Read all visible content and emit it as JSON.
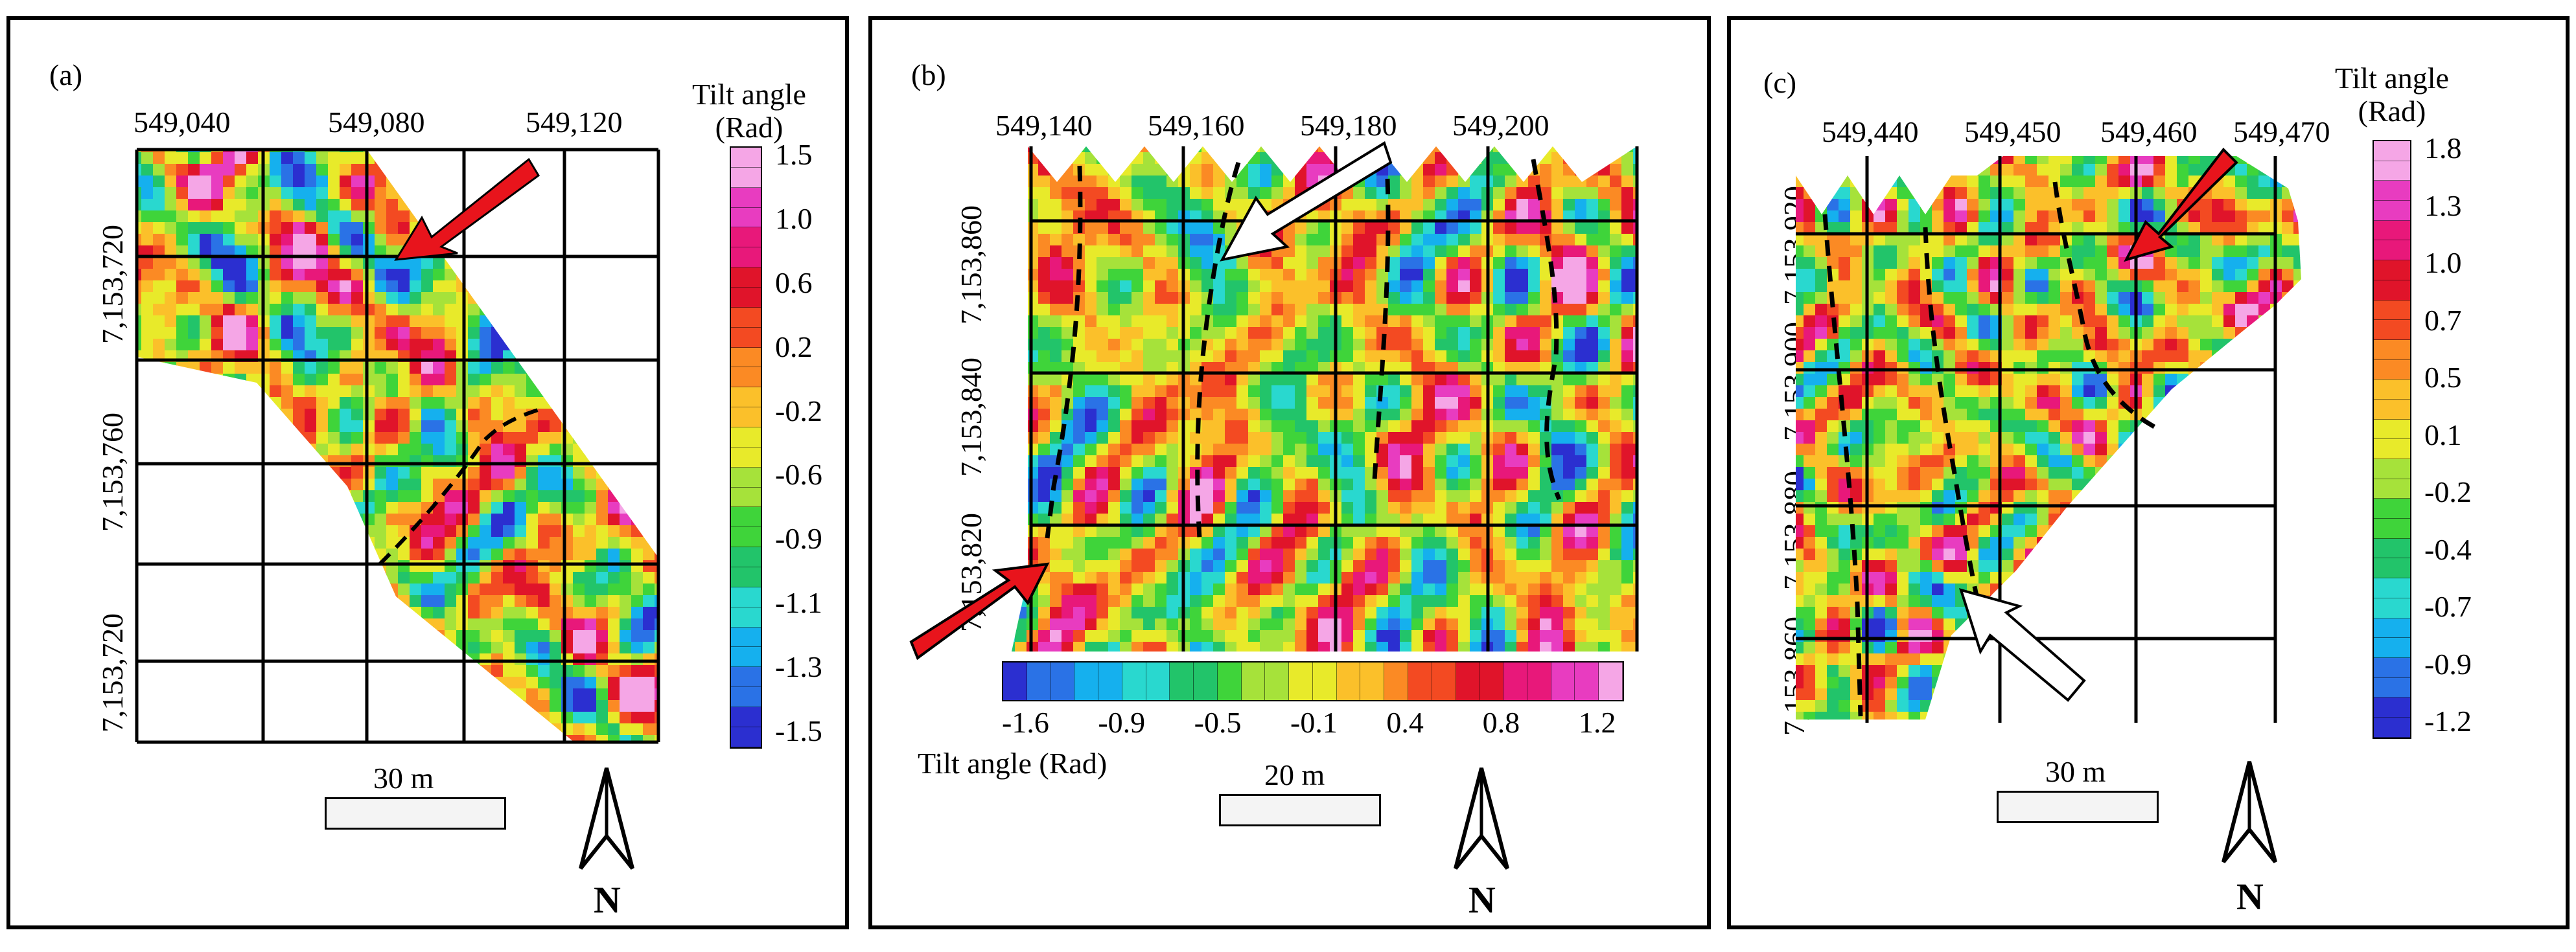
{
  "colorscale": [
    "#2b2fd0",
    "#2a72e6",
    "#15b0ee",
    "#29d8cf",
    "#22c46a",
    "#3fd43a",
    "#a6e23a",
    "#e8ea2a",
    "#fbc02a",
    "#fb8a24",
    "#f34a22",
    "#e0142a",
    "#e8187a",
    "#e83cc0",
    "#f5a6e6"
  ],
  "panels": [
    {
      "id": "a",
      "label": "(a)",
      "x_ticks": [
        "549,040",
        "549,080",
        "549,120"
      ],
      "y_ticks": [
        "7,153,720",
        "7,153,760",
        "7,153,720"
      ],
      "colorbar_title": "Tilt angle\n(Rad)",
      "colorbar_labels": [
        "1.5",
        "1.0",
        "0.6",
        "0.2",
        "-0.2",
        "-0.6",
        "-0.9",
        "-1.1",
        "-1.3",
        "-1.5"
      ],
      "scale_label": "30 m",
      "north_label": "N",
      "arrows": [
        {
          "color": "red",
          "name": "red-arrow"
        }
      ]
    },
    {
      "id": "b",
      "label": "(b)",
      "x_ticks": [
        "549,140",
        "549,160",
        "549,180",
        "549,200"
      ],
      "y_ticks": [
        "7,153,860",
        "7,153,840",
        "7,153,820"
      ],
      "colorbar_title": "Tilt angle (Rad)",
      "colorbar_labels": [
        "-1.6",
        "-0.9",
        "-0.5",
        "-0.1",
        "0.4",
        "0.8",
        "1.2"
      ],
      "scale_label": "20 m",
      "north_label": "N",
      "arrows": [
        {
          "color": "white",
          "name": "white-arrow"
        },
        {
          "color": "red",
          "name": "red-arrow"
        }
      ]
    },
    {
      "id": "c",
      "label": "(c)",
      "x_ticks": [
        "549,440",
        "549,450",
        "549,460",
        "549,470"
      ],
      "y_ticks": [
        "7,153,920",
        "7,153,900",
        "7,153,880",
        "7,153,860"
      ],
      "colorbar_title": "Tilt angle\n(Rad)",
      "colorbar_labels": [
        "1.8",
        "1.3",
        "1.0",
        "0.7",
        "0.5",
        "0.1",
        "-0.2",
        "-0.4",
        "-0.7",
        "-0.9",
        "-1.2"
      ],
      "scale_label": "30 m",
      "north_label": "N",
      "arrows": [
        {
          "color": "red",
          "name": "red-arrow"
        },
        {
          "color": "white",
          "name": "white-arrow"
        }
      ]
    }
  ]
}
